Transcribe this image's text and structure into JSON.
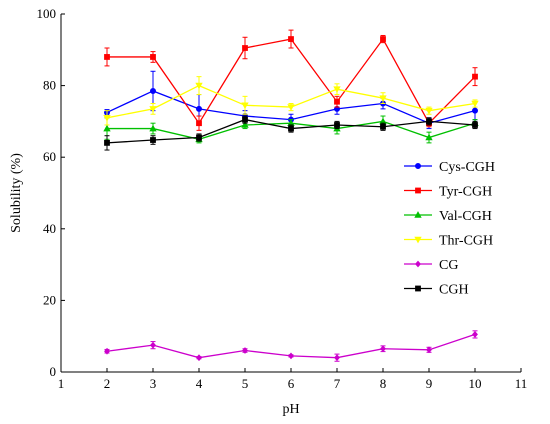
{
  "chart_data": {
    "type": "line",
    "xlabel": "pH",
    "ylabel": "Solubility (%)",
    "xlim": [
      1,
      11
    ],
    "ylim": [
      0,
      100
    ],
    "xticks": [
      1,
      2,
      3,
      4,
      5,
      6,
      7,
      8,
      9,
      10,
      11
    ],
    "yticks": [
      0,
      20,
      40,
      60,
      80,
      100
    ],
    "grid": false,
    "legend_position": "right",
    "x": [
      2,
      3,
      4,
      5,
      6,
      7,
      8,
      9,
      10
    ],
    "series": [
      {
        "name": "Cys-CGH",
        "color": "#0000ff",
        "marker": "circle",
        "values": [
          72.5,
          78.5,
          73.5,
          71.5,
          70.5,
          73.5,
          75.0,
          69.5,
          73.0
        ],
        "errors": [
          0.8,
          5.5,
          4.0,
          1.5,
          1.5,
          1.5,
          1.5,
          1.5,
          2.5
        ]
      },
      {
        "name": "Tyr-CGH",
        "color": "#ff0000",
        "marker": "square",
        "values": [
          88.0,
          88.0,
          69.5,
          90.5,
          93.0,
          75.5,
          93.0,
          69.5,
          82.5
        ],
        "errors": [
          2.5,
          1.5,
          2.0,
          3.0,
          2.5,
          1.5,
          1.0,
          1.0,
          2.5
        ]
      },
      {
        "name": "Val-CGH",
        "color": "#00c000",
        "marker": "triangle",
        "values": [
          68.0,
          68.0,
          65.0,
          69.0,
          69.5,
          68.0,
          70.0,
          65.5,
          69.5
        ],
        "errors": [
          3.0,
          1.5,
          1.0,
          1.0,
          1.0,
          1.5,
          1.5,
          1.5,
          1.0
        ]
      },
      {
        "name": "Thr-CGH",
        "color": "#ffff00",
        "marker": "triangle-down",
        "values": [
          71.0,
          73.5,
          80.0,
          74.5,
          74.0,
          79.0,
          76.5,
          73.0,
          75.0
        ],
        "errors": [
          2.0,
          1.5,
          2.5,
          2.5,
          1.0,
          1.5,
          1.5,
          1.0,
          1.0
        ]
      },
      {
        "name": "CG",
        "color": "#cc00cc",
        "marker": "diamond",
        "values": [
          5.8,
          7.5,
          4.0,
          6.0,
          4.5,
          4.0,
          6.5,
          6.2,
          10.5
        ],
        "errors": [
          0.5,
          1.0,
          0.3,
          0.5,
          0.3,
          1.0,
          0.8,
          0.7,
          1.0
        ]
      },
      {
        "name": "CGH",
        "color": "#000000",
        "marker": "square",
        "values": [
          64.0,
          64.8,
          65.5,
          70.5,
          68.0,
          69.0,
          68.5,
          70.0,
          69.0
        ],
        "errors": [
          2.0,
          1.2,
          1.0,
          1.0,
          1.0,
          1.0,
          1.0,
          1.0,
          1.0
        ]
      }
    ]
  }
}
